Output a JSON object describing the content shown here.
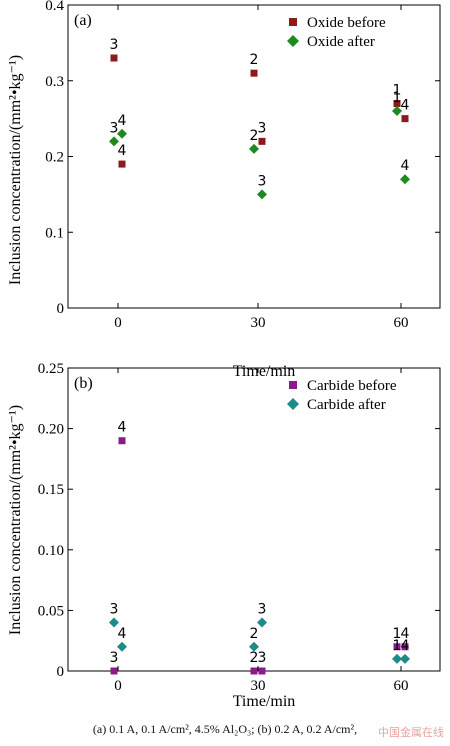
{
  "chart_data": [
    {
      "type": "scatter",
      "panel_label": "(a)",
      "xlabel": "Time/min",
      "ylabel": "Inclusion concentration/(mm²•kg⁻¹)",
      "xticks": [
        "0",
        "30",
        "60"
      ],
      "yticks": [
        "0",
        "0.1",
        "0.2",
        "0.3",
        "0.4"
      ],
      "ylim": [
        0,
        0.4
      ],
      "legend_position": "top-right",
      "series": [
        {
          "name": "Oxide before",
          "marker": "square",
          "color": "#8b1a1a",
          "points": [
            {
              "x": 0,
              "y": 0.33,
              "label": "3"
            },
            {
              "x": 0,
              "y": 0.19,
              "label": "4"
            },
            {
              "x": 30,
              "y": 0.31,
              "label": "2"
            },
            {
              "x": 30,
              "y": 0.22,
              "label": "3"
            },
            {
              "x": 60,
              "y": 0.27,
              "label": "1"
            },
            {
              "x": 60,
              "y": 0.25,
              "label": "4"
            }
          ]
        },
        {
          "name": "Oxide after",
          "marker": "diamond",
          "color": "#1f8a1f",
          "points": [
            {
              "x": 0,
              "y": 0.22,
              "label": "3"
            },
            {
              "x": 0,
              "y": 0.23,
              "label": "4"
            },
            {
              "x": 30,
              "y": 0.21,
              "label": "2"
            },
            {
              "x": 30,
              "y": 0.15,
              "label": "3"
            },
            {
              "x": 60,
              "y": 0.26,
              "label": "1"
            },
            {
              "x": 60,
              "y": 0.17,
              "label": "4"
            }
          ]
        }
      ]
    },
    {
      "type": "scatter",
      "panel_label": "(b)",
      "xlabel": "Time/min",
      "ylabel": "Inclusion concentration/(mm²•kg⁻¹)",
      "xticks": [
        "0",
        "30",
        "60"
      ],
      "yticks": [
        "0",
        "0.05",
        "0.10",
        "0.15",
        "0.20",
        "0.25"
      ],
      "ylim": [
        0,
        0.25
      ],
      "legend_position": "top-right",
      "series": [
        {
          "name": "Carbide before",
          "marker": "square",
          "color": "#8b1a8b",
          "points": [
            {
              "x": 0,
              "y": 0.0,
              "label": "3"
            },
            {
              "x": 0,
              "y": 0.19,
              "label": "4"
            },
            {
              "x": 30,
              "y": 0.0,
              "label": "2"
            },
            {
              "x": 30,
              "y": 0.0,
              "label": "3"
            },
            {
              "x": 60,
              "y": 0.02,
              "label": "1"
            },
            {
              "x": 60,
              "y": 0.02,
              "label": "4"
            }
          ]
        },
        {
          "name": "Carbide after",
          "marker": "diamond",
          "color": "#1f8a8a",
          "points": [
            {
              "x": 0,
              "y": 0.04,
              "label": "3"
            },
            {
              "x": 0,
              "y": 0.02,
              "label": "4"
            },
            {
              "x": 30,
              "y": 0.02,
              "label": "2"
            },
            {
              "x": 30,
              "y": 0.04,
              "label": "3"
            },
            {
              "x": 60,
              "y": 0.01,
              "label": "1"
            },
            {
              "x": 60,
              "y": 0.01,
              "label": "4"
            }
          ]
        }
      ]
    }
  ],
  "caption": "(a) 0.1 A, 0.1 A/cm², 4.5% Al₂O₃; (b) 0.2 A, 0.2 A/cm²,",
  "watermark": "中国金属在线"
}
